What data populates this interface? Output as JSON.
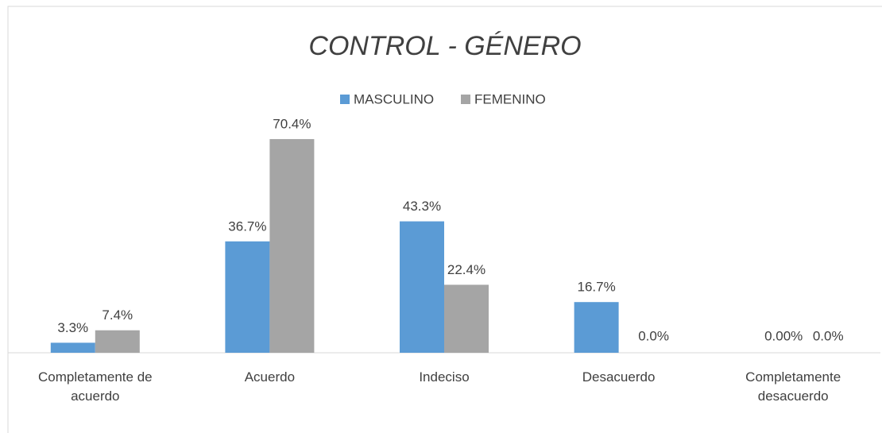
{
  "chart_data": {
    "type": "bar",
    "title": "CONTROL - GÉNERO",
    "categories": [
      "Completamente de acuerdo",
      "Acuerdo",
      "Indeciso",
      "Desacuerdo",
      "Completamente desacuerdo"
    ],
    "series": [
      {
        "name": "MASCULINO",
        "color": "#5b9bd5",
        "values": [
          3.3,
          36.7,
          43.3,
          16.7,
          0.0
        ],
        "value_labels": [
          "3.3%",
          "36.7%",
          "43.3%",
          "16.7%",
          "0.00%"
        ]
      },
      {
        "name": "FEMENINO",
        "color": "#a5a5a5",
        "values": [
          7.4,
          70.4,
          22.4,
          0.0,
          0.0
        ],
        "value_labels": [
          "7.4%",
          "70.4%",
          "22.4%",
          "0.0%",
          "0.0%"
        ]
      }
    ]
  }
}
